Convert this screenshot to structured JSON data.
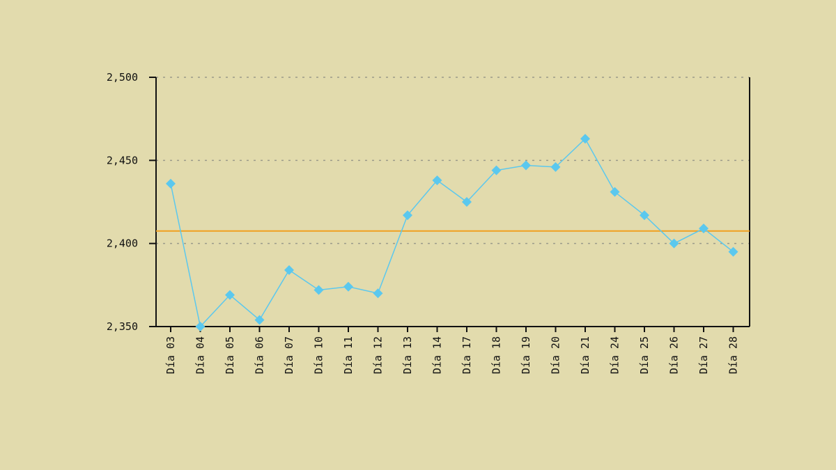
{
  "chart_data": {
    "type": "line",
    "categories": [
      "Día 03",
      "Día 04",
      "Día 05",
      "Día 06",
      "Día 07",
      "Día 10",
      "Día 11",
      "Día 12",
      "Día 13",
      "Día 14",
      "Día 17",
      "Día 18",
      "Día 19",
      "Día 20",
      "Día 21",
      "Día 24",
      "Día 25",
      "Día 26",
      "Día 27",
      "Día 28"
    ],
    "series": [
      {
        "values": [
          2.436,
          2.35,
          2.369,
          2.354,
          2.384,
          2.372,
          2.374,
          2.37,
          2.417,
          2.438,
          2.425,
          2.444,
          2.447,
          2.446,
          2.463,
          2.431,
          2.417,
          2.4,
          2.409,
          2.395
        ],
        "color": "#5bc8ee"
      }
    ],
    "reference_line": {
      "value": 2.4075,
      "color": "#f0a020"
    },
    "ylim": [
      2.35,
      2.5
    ],
    "yticks": [
      {
        "value": 2.35,
        "label": "2,350"
      },
      {
        "value": 2.4,
        "label": "2,400"
      },
      {
        "value": 2.45,
        "label": "2,450"
      },
      {
        "value": 2.5,
        "label": "2,500"
      }
    ],
    "grid": "horizontal-dotted",
    "title": "",
    "xlabel": "",
    "ylabel": "",
    "background": "#e2dbad"
  }
}
